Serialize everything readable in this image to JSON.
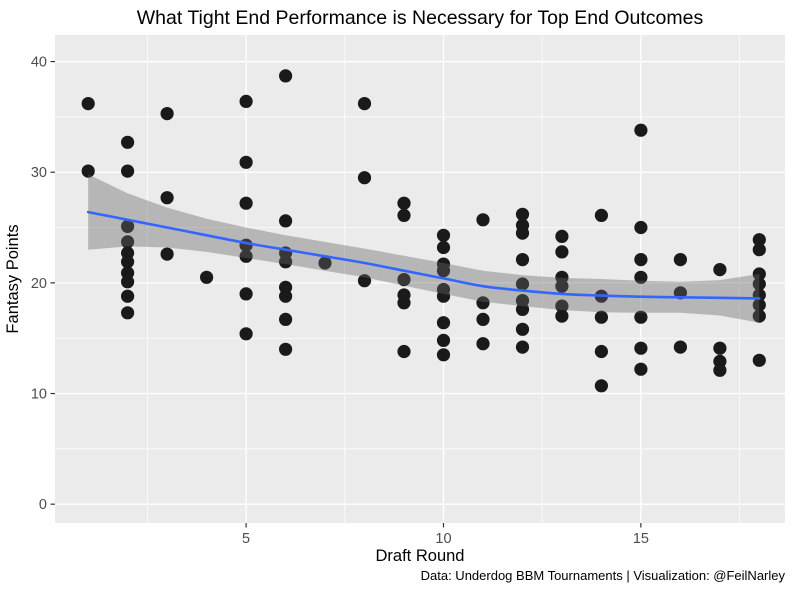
{
  "title": "What Tight End Performance is Necessary for Top End Outcomes",
  "caption": "Data: Underdog BBM Tournaments | Visualization: @FeilNarley",
  "chart_data": {
    "type": "scatter",
    "title": "What Tight End Performance is Necessary for Top End Outcomes",
    "xlabel": "Draft Round",
    "ylabel": "Fantasy Points",
    "caption": "Data: Underdog BBM Tournaments | Visualization: @FeilNarley",
    "xlim": [
      0.16,
      18.65
    ],
    "ylim": [
      -1.7,
      42.4
    ],
    "x_ticks": [
      5,
      10,
      15
    ],
    "y_ticks": [
      0,
      10,
      20,
      30,
      40
    ],
    "x_minor_ticks": [
      2.5,
      7.5,
      12.5,
      17.5
    ],
    "y_minor_ticks": [
      5,
      15,
      25,
      35
    ],
    "grid": "major-and-minor-white-on-gray",
    "legend": "none",
    "points": [
      [
        1,
        36.2
      ],
      [
        1,
        30.1
      ],
      [
        2,
        32.7
      ],
      [
        2,
        30.1
      ],
      [
        2,
        25.1
      ],
      [
        2,
        23.7
      ],
      [
        2,
        22.7
      ],
      [
        2,
        21.9
      ],
      [
        2,
        20.9
      ],
      [
        2,
        20.1
      ],
      [
        2,
        18.8
      ],
      [
        2,
        17.3
      ],
      [
        3,
        35.3
      ],
      [
        3,
        27.7
      ],
      [
        3,
        22.6
      ],
      [
        4,
        20.5
      ],
      [
        5,
        36.4
      ],
      [
        5,
        30.9
      ],
      [
        5,
        27.2
      ],
      [
        5,
        23.4
      ],
      [
        5,
        22.4
      ],
      [
        5,
        19.0
      ],
      [
        5,
        15.4
      ],
      [
        6,
        38.7
      ],
      [
        6,
        25.6
      ],
      [
        6,
        22.7
      ],
      [
        6,
        21.9
      ],
      [
        6,
        19.6
      ],
      [
        6,
        18.8
      ],
      [
        6,
        16.7
      ],
      [
        6,
        14.0
      ],
      [
        7,
        21.8
      ],
      [
        8,
        36.2
      ],
      [
        8,
        29.5
      ],
      [
        8,
        20.2
      ],
      [
        9,
        27.2
      ],
      [
        9,
        26.1
      ],
      [
        9,
        20.3
      ],
      [
        9,
        18.9
      ],
      [
        9,
        18.2
      ],
      [
        9,
        13.8
      ],
      [
        10,
        24.3
      ],
      [
        10,
        23.2
      ],
      [
        10,
        21.7
      ],
      [
        10,
        21.1
      ],
      [
        10,
        19.4
      ],
      [
        10,
        18.8
      ],
      [
        10,
        16.4
      ],
      [
        10,
        14.8
      ],
      [
        10,
        13.5
      ],
      [
        11,
        25.7
      ],
      [
        11,
        18.2
      ],
      [
        11,
        16.7
      ],
      [
        11,
        14.5
      ],
      [
        12,
        26.2
      ],
      [
        12,
        25.2
      ],
      [
        12,
        24.5
      ],
      [
        12,
        22.1
      ],
      [
        12,
        19.9
      ],
      [
        12,
        18.4
      ],
      [
        12,
        17.6
      ],
      [
        12,
        15.8
      ],
      [
        12,
        14.2
      ],
      [
        13,
        24.2
      ],
      [
        13,
        22.8
      ],
      [
        13,
        20.5
      ],
      [
        13,
        19.7
      ],
      [
        13,
        17.9
      ],
      [
        13,
        17.0
      ],
      [
        14,
        26.1
      ],
      [
        14,
        18.8
      ],
      [
        14,
        16.9
      ],
      [
        14,
        13.8
      ],
      [
        14,
        10.7
      ],
      [
        15,
        33.8
      ],
      [
        15,
        25.0
      ],
      [
        15,
        22.1
      ],
      [
        15,
        20.5
      ],
      [
        15,
        16.9
      ],
      [
        15,
        14.1
      ],
      [
        15,
        12.2
      ],
      [
        16,
        22.1
      ],
      [
        16,
        19.1
      ],
      [
        16,
        14.2
      ],
      [
        17,
        21.2
      ],
      [
        17,
        14.1
      ],
      [
        17,
        12.9
      ],
      [
        17,
        12.1
      ],
      [
        18,
        23.9
      ],
      [
        18,
        23.0
      ],
      [
        18,
        20.8
      ],
      [
        18,
        19.9
      ],
      [
        18,
        18.9
      ],
      [
        18,
        18.0
      ],
      [
        18,
        17.0
      ],
      [
        18,
        13.0
      ]
    ],
    "smooth_line": {
      "x": [
        1,
        2,
        3,
        4,
        5,
        6,
        7,
        8,
        9,
        10,
        11,
        12,
        13,
        14,
        15,
        16,
        17,
        18
      ],
      "y": [
        26.4,
        25.7,
        25.0,
        24.3,
        23.6,
        23.0,
        22.4,
        21.8,
        21.1,
        20.4,
        19.7,
        19.3,
        19.0,
        18.85,
        18.75,
        18.7,
        18.65,
        18.6
      ]
    },
    "ribbon": {
      "x": [
        1,
        2,
        3,
        4,
        5,
        6,
        7,
        8,
        9,
        10,
        11,
        12,
        13,
        14,
        15,
        16,
        17,
        18
      ],
      "upper": [
        29.8,
        28.1,
        26.8,
        25.8,
        25.0,
        24.3,
        23.7,
        23.1,
        22.45,
        21.8,
        21.1,
        20.7,
        20.45,
        20.35,
        20.2,
        20.1,
        20.25,
        20.8
      ],
      "lower": [
        23.0,
        23.3,
        23.2,
        22.8,
        22.25,
        21.7,
        21.1,
        20.5,
        19.75,
        19.0,
        18.3,
        17.9,
        17.55,
        17.35,
        17.3,
        17.3,
        17.05,
        16.4
      ]
    },
    "colors": {
      "panel_bg": "#EBEBEB",
      "grid_major": "#FFFFFF",
      "grid_minor": "#FFFFFF",
      "point": "#1A1A1A",
      "ribbon_fill": "#666666",
      "ribbon_opacity": 0.4,
      "line": "#3366FF",
      "tick_label": "#4D4D4D",
      "tick_mark": "#333333"
    }
  }
}
